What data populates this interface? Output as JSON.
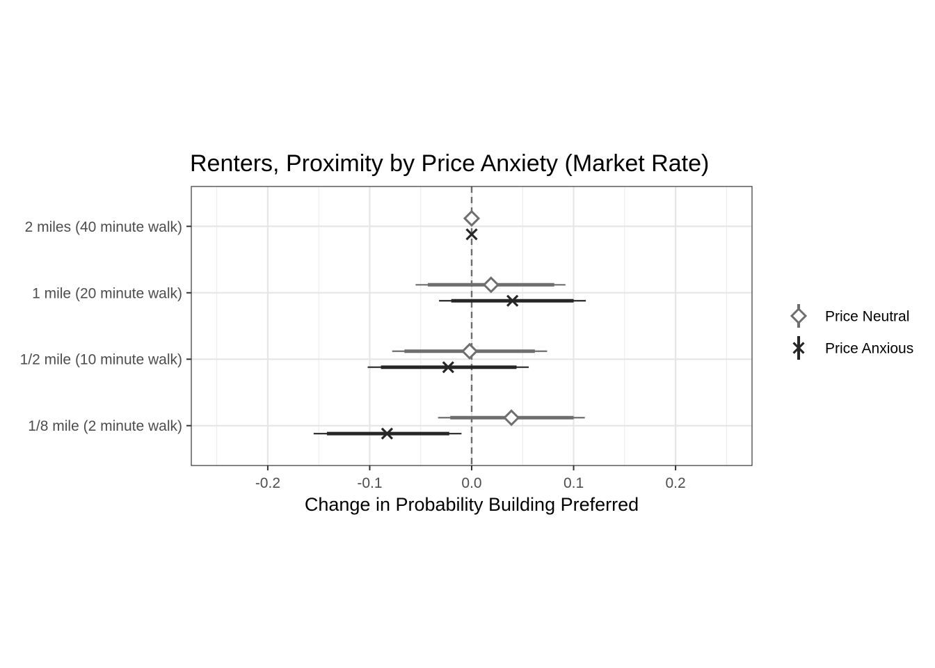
{
  "chart_data": {
    "type": "forest",
    "title": "Renters, Proximity by Price Anxiety (Market Rate)",
    "xlabel": "Change in Probability Building Preferred",
    "ylabel": "",
    "xlim": [
      -0.275,
      0.275
    ],
    "x_ticks": [
      -0.2,
      -0.1,
      0.0,
      0.1,
      0.2
    ],
    "x_tick_labels": [
      "-0.2",
      "-0.1",
      "0.0",
      "0.1",
      "0.2"
    ],
    "reference_line": 0.0,
    "grid": true,
    "legend_position": "right",
    "categories": [
      "2 miles (40 minute walk)",
      "1 mile (20 minute walk)",
      "1/2 mile (10 minute walk)",
      "1/8 mile (2 minute walk)"
    ],
    "series": [
      {
        "name": "Price Neutral",
        "color": "#6e6e6e",
        "marker": "diamond-open",
        "points": [
          {
            "category": "2 miles (40 minute walk)",
            "estimate": 0.0,
            "inner": [
              0.0,
              0.0
            ],
            "outer": [
              0.0,
              0.0
            ]
          },
          {
            "category": "1 mile (20 minute walk)",
            "estimate": 0.019,
            "inner": [
              -0.043,
              0.081
            ],
            "outer": [
              -0.055,
              0.092
            ]
          },
          {
            "category": "1/2 mile (10 minute walk)",
            "estimate": -0.002,
            "inner": [
              -0.066,
              0.062
            ],
            "outer": [
              -0.078,
              0.074
            ]
          },
          {
            "category": "1/8 mile (2 minute walk)",
            "estimate": 0.039,
            "inner": [
              -0.021,
              0.1
            ],
            "outer": [
              -0.033,
              0.111
            ]
          }
        ]
      },
      {
        "name": "Price Anxious",
        "color": "#262626",
        "marker": "x",
        "points": [
          {
            "category": "2 miles (40 minute walk)",
            "estimate": 0.0,
            "inner": [
              0.0,
              0.0
            ],
            "outer": [
              0.0,
              0.0
            ]
          },
          {
            "category": "1 mile (20 minute walk)",
            "estimate": 0.04,
            "inner": [
              -0.02,
              0.1
            ],
            "outer": [
              -0.032,
              0.112
            ]
          },
          {
            "category": "1/2 mile (10 minute walk)",
            "estimate": -0.023,
            "inner": [
              -0.089,
              0.044
            ],
            "outer": [
              -0.102,
              0.056
            ]
          },
          {
            "category": "1/8 mile (2 minute walk)",
            "estimate": -0.083,
            "inner": [
              -0.142,
              -0.022
            ],
            "outer": [
              -0.155,
              -0.01
            ]
          }
        ]
      }
    ]
  }
}
